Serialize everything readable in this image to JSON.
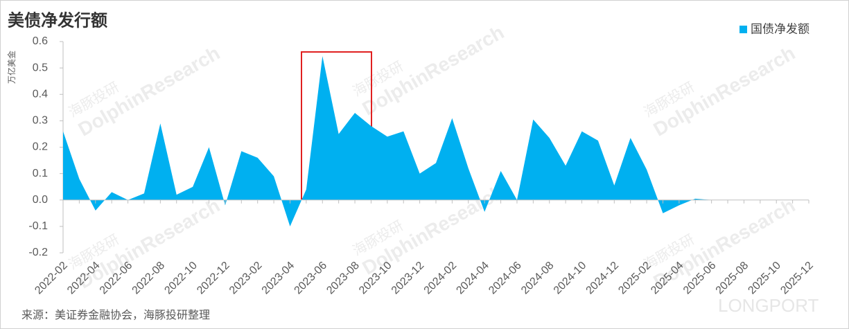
{
  "chart_data": {
    "type": "area",
    "title": "美债净发行额",
    "y_label": "万亿美金",
    "source": "来源：美证券金融协会，海豚投研整理",
    "categories": [
      "2022-02",
      null,
      "2022-04",
      null,
      "2022-06",
      null,
      "2022-08",
      null,
      "2022-10",
      null,
      "2022-12",
      null,
      "2023-02",
      null,
      "2023-04",
      null,
      "2023-06",
      null,
      "2023-08",
      null,
      "2023-10",
      null,
      "2023-12",
      null,
      "2024-02",
      null,
      "2024-04",
      null,
      "2024-06",
      null,
      "2024-08",
      null,
      "2024-10",
      null,
      "2024-12",
      null,
      "2025-02",
      null,
      "2025-04",
      null,
      "2025-06",
      null,
      "2025-08",
      null,
      "2025-10",
      null,
      "2025-12"
    ],
    "series": [
      {
        "name": "国债净发额",
        "color": "#00b0f0",
        "values": [
          0.26,
          0.08,
          -0.04,
          0.03,
          0.0,
          0.025,
          0.29,
          0.02,
          0.05,
          0.2,
          -0.02,
          0.185,
          0.16,
          0.09,
          -0.1,
          0.04,
          0.545,
          0.25,
          0.33,
          0.28,
          0.24,
          0.26,
          0.1,
          0.14,
          0.31,
          0.12,
          -0.045,
          0.11,
          0.0,
          0.305,
          0.235,
          0.13,
          0.26,
          0.225,
          0.055,
          0.235,
          0.115,
          -0.05,
          -0.02,
          0.005,
          0.0,
          null,
          null,
          null,
          null,
          null,
          null
        ]
      }
    ],
    "ylim": [
      -0.2,
      0.6
    ],
    "yticks": [
      -0.2,
      -0.1,
      {
        "value": 0,
        "label": "0.0"
      },
      0.1,
      0.2,
      0.3,
      0.4,
      0.5,
      0.6
    ],
    "legend": "top-right",
    "highlight_color": "#e02020"
  },
  "watermark": {
    "cn": "海豚投研",
    "en": "DolphinResearch",
    "brand": "LONGPORT"
  }
}
